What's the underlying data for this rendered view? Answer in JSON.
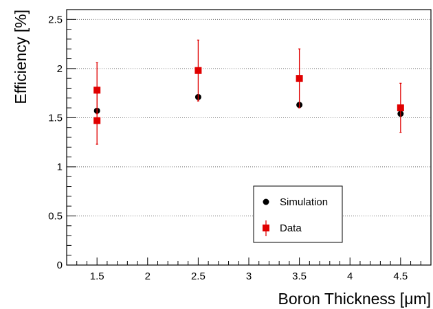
{
  "chart_data": {
    "type": "scatter",
    "xlabel": "Boron Thickness [μm]",
    "ylabel": "Efficiency [%]",
    "xlim": [
      1.2,
      4.8
    ],
    "ylim": [
      0,
      2.6
    ],
    "x_ticks": [
      "1.5",
      "2",
      "2.5",
      "3",
      "3.5",
      "4",
      "4.5"
    ],
    "y_ticks": [
      "0",
      "0.5",
      "1",
      "1.5",
      "2",
      "2.5"
    ],
    "grid": "horizontal dotted",
    "legend_position": "bottom-right",
    "series": [
      {
        "name": "Simulation",
        "marker": "circle",
        "color": "#000000",
        "points": [
          {
            "x": 1.5,
            "y": 1.57
          },
          {
            "x": 2.5,
            "y": 1.71
          },
          {
            "x": 3.5,
            "y": 1.63
          },
          {
            "x": 4.5,
            "y": 1.54
          }
        ]
      },
      {
        "name": "Data",
        "marker": "square",
        "color": "#e00000",
        "points": [
          {
            "x": 1.5,
            "y": 1.78,
            "err_low": 0.24,
            "err_high": 0.28
          },
          {
            "x": 1.5,
            "y": 1.47,
            "err_low": 0.24,
            "err_high": 0.28
          },
          {
            "x": 2.5,
            "y": 1.98,
            "err_low": 0.31,
            "err_high": 0.31
          },
          {
            "x": 3.5,
            "y": 1.9,
            "err_low": 0.3,
            "err_high": 0.3
          },
          {
            "x": 4.5,
            "y": 1.6,
            "err_low": 0.25,
            "err_high": 0.25
          }
        ]
      }
    ]
  }
}
